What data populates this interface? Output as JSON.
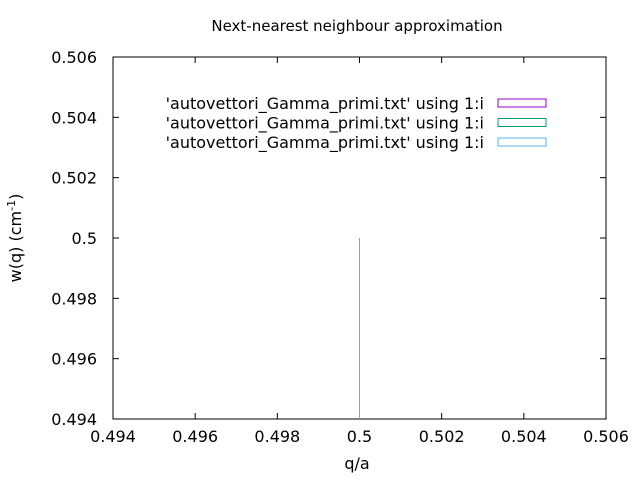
{
  "chart_data": {
    "type": "line",
    "title": "Next-nearest neighbour approximation",
    "xlabel": "q/a",
    "ylabel": "w(q) (cm",
    "ylabel_sup": "-1",
    "ylabel_end": ")",
    "xlim": [
      0.494,
      0.506
    ],
    "ylim": [
      0.494,
      0.506
    ],
    "xticks": [
      "0.494",
      "0.496",
      "0.498",
      "0.5",
      "0.502",
      "0.504",
      "0.506"
    ],
    "yticks": [
      "0.494",
      "0.496",
      "0.498",
      "0.5",
      "0.502",
      "0.504",
      "0.506"
    ],
    "grid": false,
    "legend_position": "top-right",
    "series": [
      {
        "name": "'autovettori_Gamma_primi.txt' using 1:i",
        "color": "#9400d3",
        "points": []
      },
      {
        "name": "'autovettori_Gamma_primi.txt' using 1:i",
        "color": "#009e73",
        "points": []
      },
      {
        "name": "'autovettori_Gamma_primi.txt' using 1:i",
        "color": "#56b4e9",
        "points": [
          [
            0.5,
            0.494
          ],
          [
            0.5,
            0.5
          ]
        ]
      }
    ]
  }
}
